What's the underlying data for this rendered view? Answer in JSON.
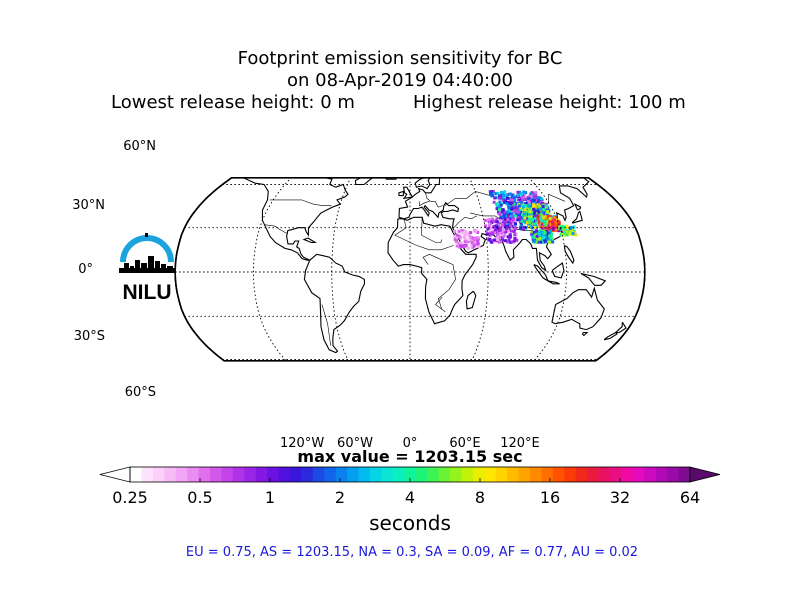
{
  "title": {
    "line1": "Footprint emission sensitivity for BC",
    "line2": "on 08-Apr-2019 04:40:00",
    "lowest": "Lowest release height: 0 m",
    "highest": "Highest release height: 100 m"
  },
  "map": {
    "projection": "Robinson",
    "lat_labels": [
      "60°N",
      "30°N",
      "0°",
      "30°S",
      "60°S"
    ],
    "lon_labels": [
      "120°W",
      "60°W",
      "0°",
      "60°E",
      "120°E"
    ],
    "logo_text": "NILU",
    "logo_color": "#1aa3dc"
  },
  "max_value": "max value = 1203.15 sec",
  "colorbar": {
    "tick_labels": [
      "0.25",
      "0.5",
      "1",
      "2",
      "4",
      "8",
      "16",
      "32",
      "64"
    ],
    "unit": "seconds",
    "colors": [
      "#ffffff",
      "#fde2fd",
      "#fbd1fb",
      "#f7bcf7",
      "#f2a6f5",
      "#ea8df2",
      "#e070ee",
      "#d457ec",
      "#c443ea",
      "#b033e8",
      "#9a25e6",
      "#8419e4",
      "#6a12e2",
      "#5010de",
      "#3a15da",
      "#2b2ade",
      "#1d49e4",
      "#1265ea",
      "#0a82ee",
      "#059ff0",
      "#03bbee",
      "#05d3e6",
      "#0ae5d6",
      "#0aefbf",
      "#0ef39c",
      "#1df478",
      "#3ef354",
      "#6af235",
      "#96f21c",
      "#c2f10c",
      "#e8ef03",
      "#fde600",
      "#ffd200",
      "#ffba00",
      "#ffa300",
      "#ff8a00",
      "#ff6f00",
      "#ff5200",
      "#fa3a08",
      "#f0281a",
      "#ea1a40",
      "#e81262",
      "#ec0d84",
      "#f00aa5",
      "#e60abf",
      "#ce0ac0",
      "#b20ab6",
      "#9a0aa6",
      "#800a90"
    ],
    "extend_left": "#ffffff",
    "extend_right": "#5a0a6a"
  },
  "regions": "EU = 0.75,  AS = 1203.15,  NA = 0.3,  SA = 0.09,  AF = 0.77,  AU = 0.02"
}
